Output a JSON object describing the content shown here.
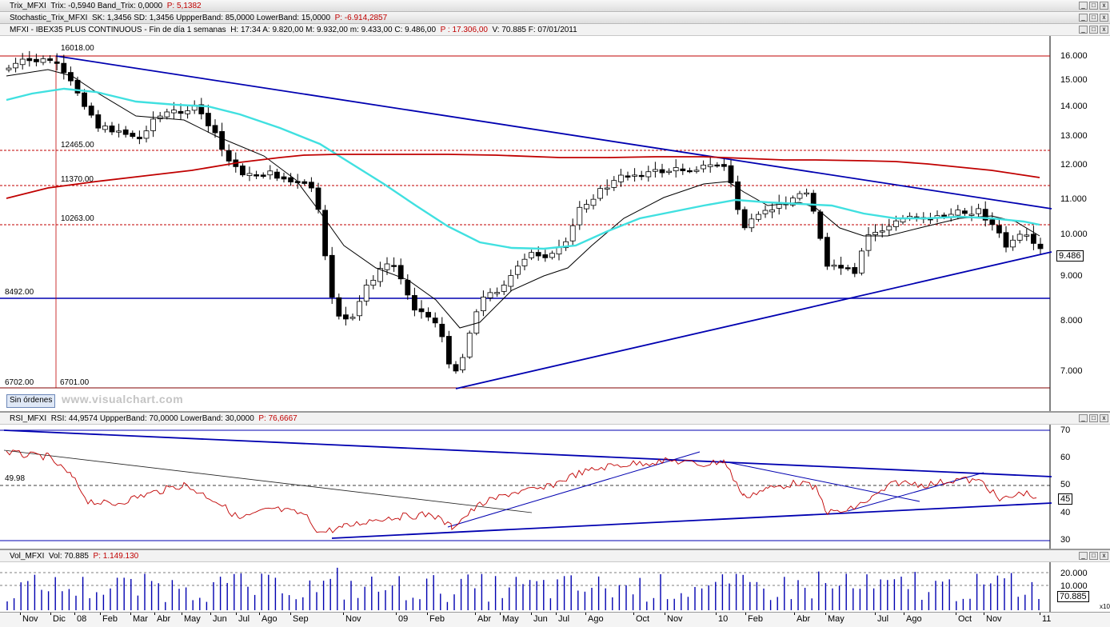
{
  "headers": {
    "trix": {
      "prefix": "Trix_MFXI",
      "text": "Trix: -0,5940  Band_Trix: 0,0000",
      "p": "P: 5,1382"
    },
    "stoch": {
      "prefix": "Stochastic_Trix_MFXI",
      "text": "SK: 1,3456  SD: 1,3456  UppperBand: 85,0000  LowerBand: 15,0000",
      "p": "P: -6.914,2857"
    },
    "price": {
      "prefix": "MFXI - IBEX35 PLUS CONTINUOUS - Fin de día 1 semanas",
      "text": "H: 17:34  A: 9.820,00  M: 9.932,00  m: 9.433,00  C: 9.486,00",
      "p": "P : 17.306,00",
      "tail": "V: 70.885  F: 07/01/2011"
    },
    "rsi": {
      "prefix": "RSI_MFXI",
      "text": "RSI: 44,9574  UppperBand: 70,0000  LowerBand: 30,0000",
      "p": "P: 76,6667"
    },
    "vol": {
      "prefix": "Vol_MFXI",
      "text": "Vol: 70.885",
      "p": "P: 1.149.130"
    }
  },
  "window_buttons": [
    "_",
    "□",
    "x"
  ],
  "price_axis": [
    "16.000",
    "15.000",
    "14.000",
    "13.000",
    "12.000",
    "11.000",
    "10.000",
    "9.000",
    "8.000",
    "7.000"
  ],
  "price_tag": "9.486",
  "annotations": {
    "a1": "16018.00",
    "a2": "12465.00",
    "a3": "11370.00",
    "a4": "10263.00",
    "a5": "8492.00",
    "a6": "6702.00",
    "a7": "6701.00"
  },
  "rsi_axis": [
    "70",
    "60",
    "50",
    "40",
    "30"
  ],
  "rsi_tag": "45",
  "rsi_annot": "49.98",
  "vol_axis": [
    "20.000",
    "10.000"
  ],
  "vol_tag": "70.885",
  "vol_mult": "x10",
  "sin_ordenes": "Sin órdenes",
  "watermark": "www.visualchart.com",
  "x_labels": [
    "Nov",
    "Dic",
    "08",
    "Feb",
    "Mar",
    "Abr",
    "May",
    "Jun",
    "Jul",
    "Ago",
    "Sep",
    "Nov",
    "09",
    "Feb",
    "Abr",
    "May",
    "Jun",
    "Jul",
    "Ago",
    "Oct",
    "Nov",
    "10",
    "Feb",
    "Abr",
    "May",
    "Jul",
    "Ago",
    "Oct",
    "Nov",
    "11"
  ],
  "colors": {
    "candle_up": "#ffffff",
    "candle_down": "#000000",
    "ma_cyan": "#40e0e0",
    "ma_red": "#c00000",
    "trend_blue": "#0000b0",
    "rsi_line": "#c00000"
  }
}
